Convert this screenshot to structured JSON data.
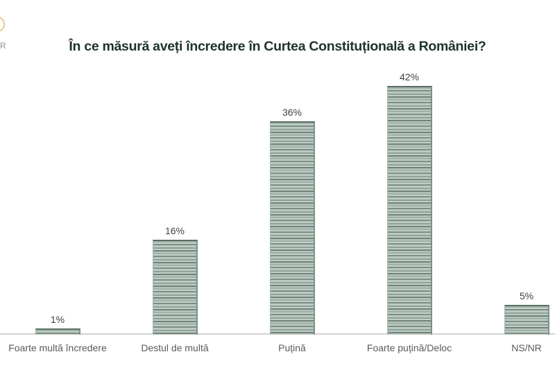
{
  "logo": {
    "letter": "R"
  },
  "chart_data": {
    "type": "bar",
    "title": "În ce măsură aveți încredere în Curtea Constituțională a României?",
    "categories": [
      "Foarte multă încredere",
      "Destul de multă",
      "Puțină",
      "Foarte puțină/Deloc",
      "NS/NR"
    ],
    "values": [
      1,
      16,
      36,
      42,
      5
    ],
    "value_labels": [
      "1%",
      "16%",
      "36%",
      "42%",
      "5%"
    ],
    "unit": "%",
    "xlabel": "",
    "ylabel": "",
    "ylim": [
      0,
      47
    ],
    "grid": false,
    "legend": "none",
    "colors": {
      "bar_base": "#b9c6c0",
      "bar_stripe_dark": "#6f8478",
      "bar_edge": "#5a6e63",
      "axis_line": "#d2d2d2",
      "title_text": "#1e332b",
      "tick_label_text": "#5a5a5a",
      "value_label_text": "#3f3f3f"
    }
  }
}
